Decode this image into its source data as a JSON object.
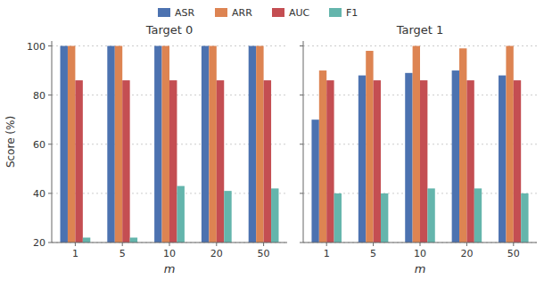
{
  "chart_data": [
    {
      "type": "bar",
      "title": "Target 0",
      "categories": [
        "1",
        "5",
        "10",
        "20",
        "50"
      ],
      "series": [
        {
          "name": "ASR",
          "color": "#4C72B0",
          "values": [
            100,
            100,
            100,
            100,
            100
          ]
        },
        {
          "name": "ARR",
          "color": "#DD8452",
          "values": [
            100,
            100,
            100,
            100,
            100
          ]
        },
        {
          "name": "AUC",
          "color": "#C44E52",
          "values": [
            86,
            86,
            86,
            86,
            86
          ]
        },
        {
          "name": "F1",
          "color": "#64B5AC",
          "values": [
            22,
            22,
            43,
            41,
            42
          ]
        }
      ],
      "xlabel": "m",
      "ylabel": "Score (%)",
      "ylim": [
        20,
        102
      ],
      "yticks": [
        20,
        40,
        60,
        80,
        100
      ],
      "grid": true,
      "legend": "top"
    },
    {
      "type": "bar",
      "title": "Target 1",
      "categories": [
        "1",
        "5",
        "10",
        "20",
        "50"
      ],
      "series": [
        {
          "color": "#4C72B0",
          "values": [
            70,
            88,
            89,
            90,
            88
          ]
        },
        {
          "color": "#DD8452",
          "values": [
            90,
            98,
            100,
            99,
            100
          ]
        },
        {
          "color": "#C44E52",
          "values": [
            86,
            86,
            86,
            86,
            86
          ]
        },
        {
          "color": "#64B5AC",
          "values": [
            40,
            40,
            42,
            42,
            40
          ]
        }
      ],
      "xlabel": "m",
      "ylim": [
        20,
        102
      ],
      "yticks": [
        20,
        40,
        60,
        80,
        100
      ],
      "grid": true,
      "tick_labels": "x"
    }
  ]
}
